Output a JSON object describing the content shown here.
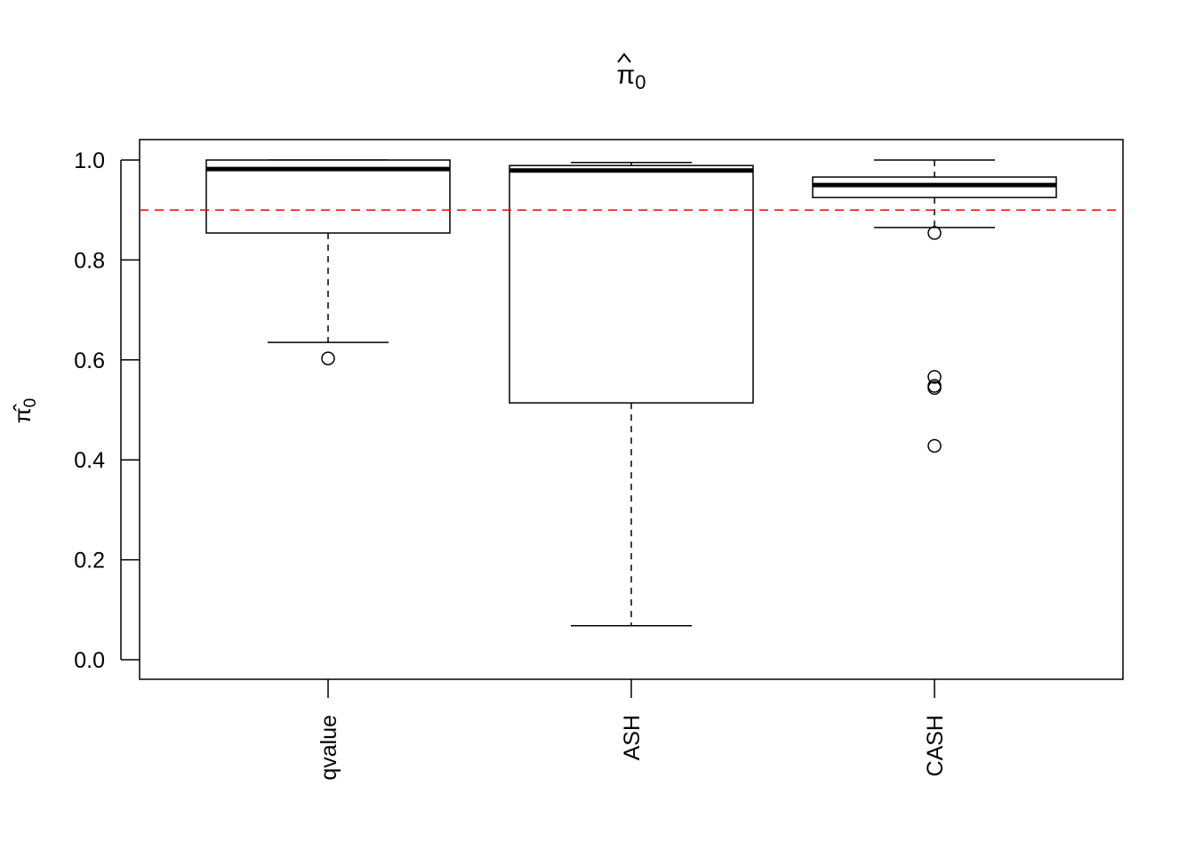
{
  "chart_data": {
    "type": "boxplot",
    "title": "π̂0",
    "title_main": "π",
    "title_sub": "0",
    "xlabel": "",
    "ylabel": "π̂0",
    "ylabel_main": "π",
    "ylabel_sub": "0",
    "ylim": [
      0,
      1
    ],
    "yticks": [
      "0.0",
      "0.2",
      "0.4",
      "0.6",
      "0.8",
      "1.0"
    ],
    "grid": false,
    "categories": [
      "qvalue",
      "ASH",
      "CASH"
    ],
    "boxes": [
      {
        "name": "qvalue",
        "whisker_low": 0.635,
        "q1": 0.854,
        "median": 0.982,
        "q3": 1.0,
        "whisker_high": 1.0,
        "outliers": [
          0.603
        ]
      },
      {
        "name": "ASH",
        "whisker_low": 0.068,
        "q1": 0.514,
        "median": 0.979,
        "q3": 0.989,
        "whisker_high": 0.995,
        "outliers": []
      },
      {
        "name": "CASH",
        "whisker_low": 0.865,
        "q1": 0.925,
        "median": 0.95,
        "q3": 0.966,
        "whisker_high": 1.0,
        "outliers": [
          0.854,
          0.566,
          0.548,
          0.544,
          0.428
        ]
      }
    ],
    "reference_line": {
      "y": 0.9,
      "color": "#ff0000",
      "style": "dashed"
    }
  }
}
